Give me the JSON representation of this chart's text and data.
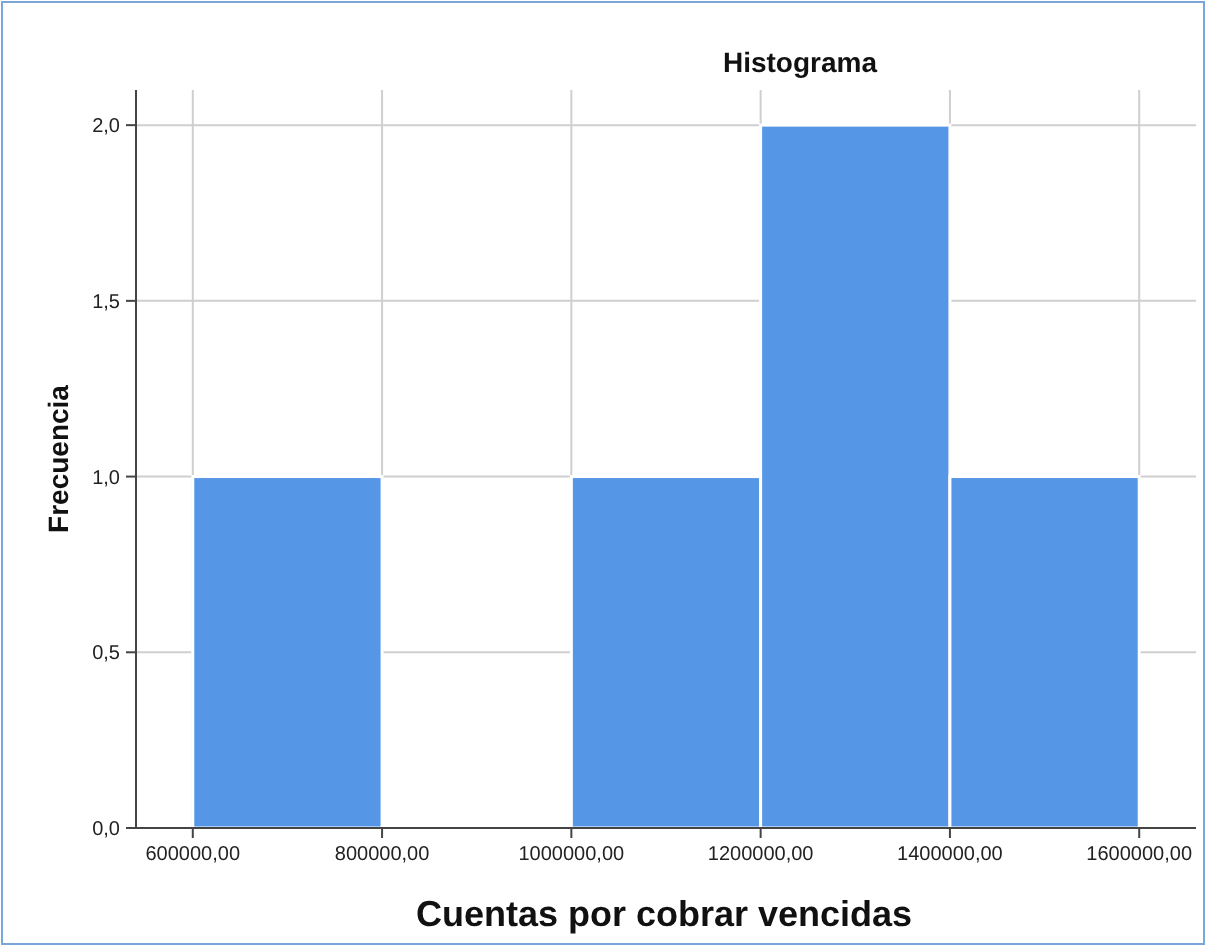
{
  "chart_data": {
    "type": "histogram",
    "title": "Histograma",
    "xlabel": "Cuentas por cobrar vencidas",
    "ylabel": "Frecuencia",
    "bins": [
      600000,
      800000,
      1000000,
      1200000,
      1400000,
      1600000
    ],
    "values": [
      1,
      0,
      1,
      2,
      1
    ],
    "color": "#5596e6",
    "xlim": [
      540000,
      1660000
    ],
    "xticks": [
      {
        "value": 600000,
        "label": "600000,00"
      },
      {
        "value": 800000,
        "label": "800000,00"
      },
      {
        "value": 1000000,
        "label": "1000000,00"
      },
      {
        "value": 1200000,
        "label": "1200000,00"
      },
      {
        "value": 1400000,
        "label": "1400000,00"
      },
      {
        "value": 1600000,
        "label": "1600000,00"
      }
    ],
    "ylim": [
      0,
      2.1
    ],
    "yticks": [
      {
        "value": 0,
        "label": "0,0"
      },
      {
        "value": 0.5,
        "label": "0,5"
      },
      {
        "value": 1,
        "label": "1,0"
      },
      {
        "value": 1.5,
        "label": "1,5"
      },
      {
        "value": 2,
        "label": "2,0"
      }
    ],
    "grid": true
  }
}
